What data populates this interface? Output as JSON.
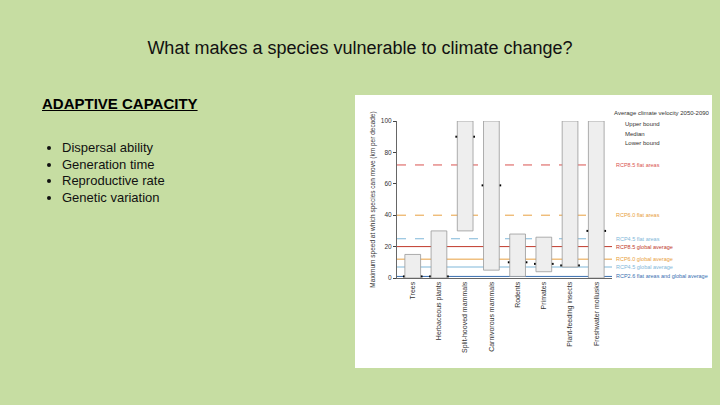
{
  "slide": {
    "title": "What makes a species vulnerable to climate change?",
    "heading": "ADAPTIVE CAPACITY",
    "bullets": [
      "Dispersal ability",
      "Generation time",
      "Reproductive rate",
      "Genetic variation"
    ]
  },
  "chart_data": {
    "type": "range_bar",
    "y_label": "Maximum speed at which species can move (km per decade)",
    "categories": [
      "Trees",
      "Herbaceous plants",
      "Split-hooved mammals",
      "Carnivorous mammals",
      "Rodents",
      "Primates",
      "Plant-feeding insects",
      "Freshwater mollusks"
    ],
    "legend_title": "Average climate velocity 2050-2090",
    "series": [
      {
        "name": "Upper bound",
        "values": [
          15,
          30,
          100,
          100,
          28,
          26,
          100,
          100
        ]
      },
      {
        "name": "Median",
        "values": [
          1,
          1,
          90,
          59,
          10,
          9,
          8,
          30
        ]
      },
      {
        "name": "Lower bound",
        "values": [
          0,
          0,
          30,
          5,
          1,
          4,
          7,
          0
        ]
      }
    ],
    "ylim": [
      0,
      100
    ],
    "yticks": [
      0,
      20,
      40,
      60,
      80,
      100
    ],
    "grid": false,
    "reference_lines": [
      {
        "label": "RCP8.5 flat areas",
        "value": 72,
        "color": "#d9534f",
        "line_style": "dash"
      },
      {
        "label": "RCP6.0 flat areas",
        "value": 40,
        "color": "#e8a040",
        "line_style": "dash"
      },
      {
        "label": "RCP4.5 flat areas",
        "value": 25,
        "color": "#7fb7d9",
        "line_style": "dash"
      },
      {
        "label": "RCP8.5 global average",
        "value": 20,
        "color": "#c0392b",
        "line_style": "solid"
      },
      {
        "label": "RCP6.0 global average",
        "value": 12,
        "color": "#e8a040",
        "line_style": "solid"
      },
      {
        "label": "RCP4.5 global average",
        "value": 7,
        "color": "#7fb7d9",
        "line_style": "solid"
      },
      {
        "label": "RCP2.6 flat areas and global average",
        "value": 1,
        "color": "#3a6fb0",
        "line_style": "solid"
      }
    ]
  }
}
